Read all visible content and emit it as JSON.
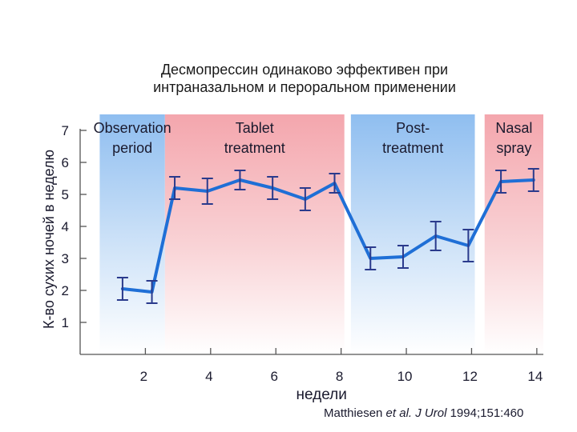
{
  "title": {
    "line1": "Десмопрессин одинаково эффективен при",
    "line2": "интраназальном и пероральном применении"
  },
  "citation": {
    "author": "Matthiesen",
    "etal": "et al.",
    "journal": "J Urol",
    "ref": "1994;151:460"
  },
  "colors": {
    "line": "#1f6fd6",
    "error": "#2a3a8c",
    "blue_band": "#8fbef0",
    "red_band": "#f4a6ad"
  },
  "chart_data": {
    "type": "line",
    "xlabel": "недели",
    "ylabel": "К-во сухих ночей в неделю",
    "xlim": [
      0,
      14.2
    ],
    "ylim": [
      0,
      7.5
    ],
    "x_ticks": [
      2,
      4,
      6,
      8,
      10,
      12,
      14
    ],
    "y_ticks": [
      1,
      2,
      3,
      4,
      5,
      6,
      7
    ],
    "phases": [
      {
        "line1": "Observation",
        "line2": "period",
        "start": 0.6,
        "end": 2.6,
        "color": "blue"
      },
      {
        "line1": "Tablet",
        "line2": "treatment",
        "start": 2.6,
        "end": 8.1,
        "color": "red"
      },
      {
        "line1": "Post-",
        "line2": "treatment",
        "start": 8.3,
        "end": 12.1,
        "color": "blue"
      },
      {
        "line1": "Nasal",
        "line2": "spray",
        "start": 12.4,
        "end": 14.2,
        "color": "red"
      }
    ],
    "series": [
      {
        "name": "Dry nights per week",
        "x": [
          1.3,
          2.2,
          2.9,
          3.9,
          4.9,
          5.9,
          6.9,
          7.8,
          8.9,
          9.9,
          10.9,
          11.9,
          12.9,
          13.9
        ],
        "y": [
          2.05,
          1.95,
          5.2,
          5.1,
          5.45,
          5.2,
          4.85,
          5.35,
          3.0,
          3.05,
          3.7,
          3.4,
          5.4,
          5.45
        ],
        "err": [
          0.35,
          0.35,
          0.35,
          0.4,
          0.3,
          0.35,
          0.35,
          0.3,
          0.35,
          0.35,
          0.45,
          0.5,
          0.35,
          0.35
        ]
      }
    ]
  }
}
